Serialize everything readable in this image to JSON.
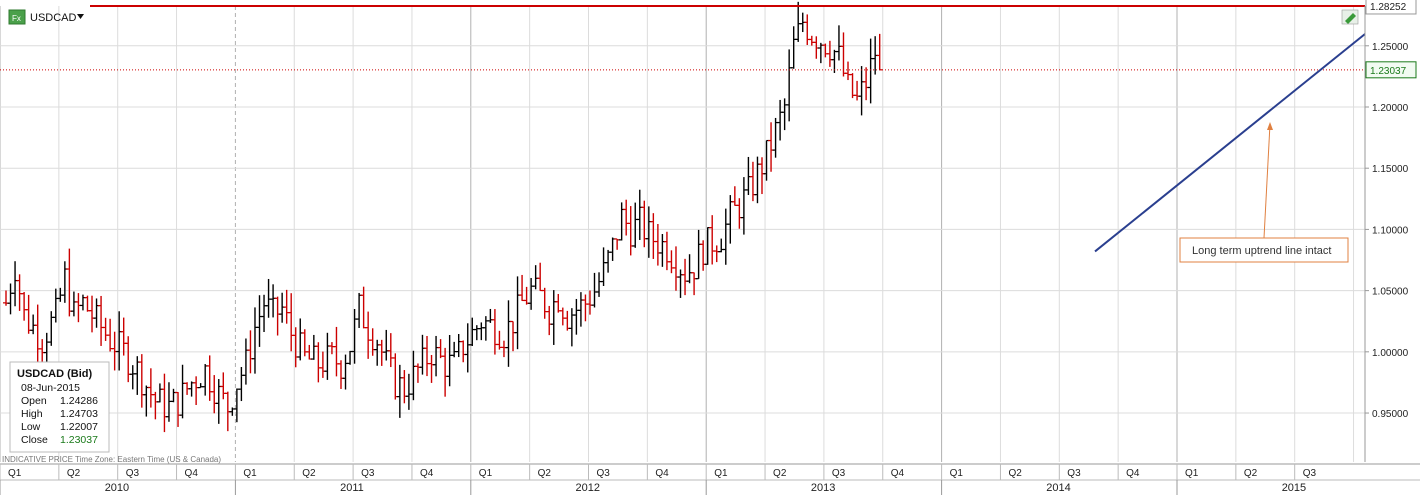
{
  "header": {
    "fx_badge": "Fx",
    "symbol": "USDCAD",
    "dropdown_icon": "caret-down-icon",
    "edit_icon": "pencil-icon"
  },
  "footer_note": "INDICATIVE PRICE    Time Zone: Eastern Time (US & Canada)",
  "info_box": {
    "title": "USDCAD (Bid)",
    "date": "08-Jun-2015",
    "rows": [
      {
        "label": "Open",
        "value": "1.24286"
      },
      {
        "label": "High",
        "value": "1.24703"
      },
      {
        "label": "Low",
        "value": "1.22007"
      },
      {
        "label": "Close",
        "value": "1.23037"
      }
    ]
  },
  "annotation": "Long term uptrend line intact",
  "colors": {
    "up_bar": "#000000",
    "down_bar": "#cc0000",
    "resistance": "#cc0000",
    "trendline": "#2a3f8f",
    "last_price": "#1a7a1a",
    "arrow": "#e08040",
    "grid": "#d8d8d8"
  },
  "chart_data": {
    "type": "ohlc",
    "frequency": "weekly",
    "y_range": [
      0.91,
      1.2825
    ],
    "y_ticks": [
      "1.25000",
      "1.20000",
      "1.15000",
      "1.10000",
      "1.05000",
      "1.00000",
      "0.95000"
    ],
    "horizontal_lines": [
      {
        "label": "1.28252",
        "value": 1.28252,
        "style": "solid"
      },
      {
        "label": "1.23037",
        "value": 1.23037,
        "style": "dotted"
      }
    ],
    "trendline": {
      "from": {
        "date": "2014-08-01",
        "value": 1.082
      },
      "to": {
        "date": "2015-06-08",
        "value": 1.26
      }
    },
    "quarters": [
      "Q1",
      "Q2",
      "Q3",
      "Q4",
      "Q1",
      "Q2",
      "Q3",
      "Q4",
      "Q1",
      "Q2",
      "Q3",
      "Q4",
      "Q1",
      "Q2",
      "Q3",
      "Q4",
      "Q1",
      "Q2",
      "Q3",
      "Q4",
      "Q1",
      "Q2",
      "Q3"
    ],
    "years": [
      "2010",
      "2011",
      "2012",
      "2013",
      "2014",
      "2015"
    ],
    "price_path": [
      [
        0,
        1.04
      ],
      [
        2,
        1.07
      ],
      [
        4,
        1.03
      ],
      [
        6,
        1.02
      ],
      [
        8,
        1.01
      ],
      [
        11,
        1.03
      ],
      [
        13,
        1.06
      ],
      [
        15,
        1.03
      ],
      [
        17,
        1.04
      ],
      [
        19,
        1.03
      ],
      [
        21,
        1.02
      ],
      [
        23,
        1.01
      ],
      [
        26,
        1.0
      ],
      [
        29,
        0.985
      ],
      [
        33,
        0.96
      ],
      [
        36,
        0.955
      ],
      [
        38,
        0.96
      ],
      [
        41,
        0.975
      ],
      [
        44,
        0.985
      ],
      [
        47,
        0.965
      ],
      [
        49,
        0.955
      ],
      [
        51,
        0.975
      ],
      [
        53,
        0.99
      ],
      [
        55,
        1.02
      ],
      [
        57,
        1.04
      ],
      [
        59,
        1.03
      ],
      [
        61,
        1.035
      ],
      [
        63,
        1.015
      ],
      [
        66,
        0.995
      ],
      [
        69,
        0.99
      ],
      [
        72,
        0.995
      ],
      [
        74,
        0.99
      ],
      [
        76,
        1.005
      ],
      [
        78,
        1.035
      ],
      [
        80,
        1.02
      ],
      [
        82,
        1.01
      ],
      [
        84,
        0.99
      ],
      [
        86,
        0.975
      ],
      [
        88,
        0.97
      ],
      [
        91,
        0.985
      ],
      [
        94,
        1.0
      ],
      [
        97,
        0.99
      ],
      [
        99,
        0.99
      ],
      [
        101,
        1.005
      ],
      [
        103,
        1.015
      ],
      [
        105,
        1.025
      ],
      [
        108,
        1.02
      ],
      [
        110,
        1.015
      ],
      [
        112,
        1.025
      ],
      [
        114,
        1.04
      ],
      [
        116,
        1.05
      ],
      [
        118,
        1.045
      ],
      [
        120,
        1.035
      ],
      [
        122,
        1.045
      ],
      [
        124,
        1.03
      ],
      [
        126,
        1.035
      ],
      [
        128,
        1.04
      ],
      [
        130,
        1.05
      ],
      [
        132,
        1.065
      ],
      [
        134,
        1.085
      ],
      [
        136,
        1.11
      ],
      [
        138,
        1.1
      ],
      [
        140,
        1.105
      ],
      [
        142,
        1.095
      ],
      [
        144,
        1.09
      ],
      [
        146,
        1.085
      ],
      [
        148,
        1.075
      ],
      [
        150,
        1.065
      ],
      [
        152,
        1.07
      ],
      [
        154,
        1.085
      ],
      [
        156,
        1.09
      ],
      [
        158,
        1.095
      ],
      [
        160,
        1.11
      ],
      [
        162,
        1.12
      ],
      [
        164,
        1.13
      ],
      [
        166,
        1.145
      ],
      [
        168,
        1.16
      ],
      [
        170,
        1.18
      ],
      [
        172,
        1.2
      ],
      [
        174,
        1.25
      ],
      [
        176,
        1.27
      ],
      [
        178,
        1.26
      ],
      [
        180,
        1.255
      ],
      [
        182,
        1.25
      ],
      [
        184,
        1.24
      ],
      [
        186,
        1.215
      ],
      [
        188,
        1.205
      ],
      [
        190,
        1.22
      ],
      [
        192,
        1.245
      ],
      [
        193,
        1.23
      ]
    ]
  }
}
